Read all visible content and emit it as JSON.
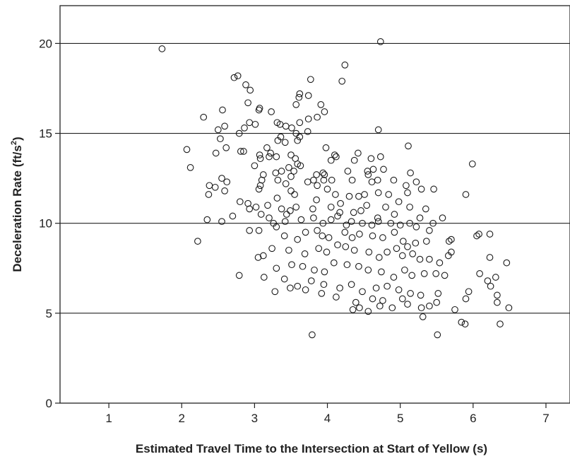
{
  "chart_data": {
    "type": "scatter",
    "title": "",
    "xlabel": "Estimated Travel Time to the Intersection at Start of Yellow (s)",
    "ylabel_main": "Deceleration Rate (ft/s",
    "ylabel_sup": "2",
    "ylabel_tail": ")",
    "xlim": [
      0.33,
      7.33
    ],
    "ylim": [
      0,
      22.1
    ],
    "xticks": [
      1,
      2,
      3,
      4,
      5,
      6,
      7
    ],
    "yticks": [
      0,
      5,
      10,
      15,
      20
    ],
    "gridlines_y": [
      5,
      10,
      15,
      20
    ],
    "grid": "horizontal",
    "legend": "none",
    "marker": "open-circle",
    "marker_color": "#1a1a1a",
    "series": [
      {
        "points": [
          [
            1.73,
            19.7
          ],
          [
            4.73,
            20.1
          ],
          [
            4.24,
            18.8
          ],
          [
            2.72,
            18.1
          ],
          [
            2.77,
            18.2
          ],
          [
            3.77,
            18.0
          ],
          [
            4.2,
            17.9
          ],
          [
            2.88,
            17.7
          ],
          [
            2.94,
            17.4
          ],
          [
            3.61,
            17.0
          ],
          [
            3.62,
            17.2
          ],
          [
            3.74,
            17.1
          ],
          [
            2.91,
            16.7
          ],
          [
            3.91,
            16.6
          ],
          [
            3.57,
            16.6
          ],
          [
            3.07,
            16.4
          ],
          [
            3.96,
            16.2
          ],
          [
            3.06,
            16.3
          ],
          [
            3.23,
            16.2
          ],
          [
            2.56,
            16.3
          ],
          [
            2.3,
            15.9
          ],
          [
            3.31,
            15.6
          ],
          [
            3.35,
            15.5
          ],
          [
            2.93,
            15.6
          ],
          [
            3.62,
            15.6
          ],
          [
            3.74,
            15.8
          ],
          [
            3.86,
            15.9
          ],
          [
            2.5,
            15.2
          ],
          [
            2.59,
            15.4
          ],
          [
            2.86,
            15.3
          ],
          [
            3.43,
            15.4
          ],
          [
            3.01,
            15.5
          ],
          [
            3.51,
            15.3
          ],
          [
            4.7,
            15.2
          ],
          [
            2.79,
            15.0
          ],
          [
            3.57,
            15.0
          ],
          [
            3.73,
            15.1
          ],
          [
            3.36,
            14.8
          ],
          [
            2.53,
            14.7
          ],
          [
            2.61,
            14.2
          ],
          [
            2.81,
            14.0
          ],
          [
            2.07,
            14.1
          ],
          [
            2.47,
            13.9
          ],
          [
            2.85,
            14.0
          ],
          [
            3.32,
            14.6
          ],
          [
            3.42,
            14.5
          ],
          [
            3.59,
            14.6
          ],
          [
            3.62,
            14.8
          ],
          [
            3.98,
            14.2
          ],
          [
            5.11,
            14.3
          ],
          [
            3.17,
            14.2
          ],
          [
            3.22,
            13.9
          ],
          [
            3.07,
            13.8
          ],
          [
            3.08,
            13.6
          ],
          [
            3.2,
            13.7
          ],
          [
            3.3,
            13.7
          ],
          [
            3.5,
            13.8
          ],
          [
            3.56,
            13.6
          ],
          [
            4.1,
            13.8
          ],
          [
            4.12,
            13.7
          ],
          [
            4.42,
            13.9
          ],
          [
            4.05,
            13.5
          ],
          [
            3.59,
            13.3
          ],
          [
            4.73,
            13.7
          ],
          [
            4.37,
            13.5
          ],
          [
            4.6,
            13.6
          ],
          [
            3.0,
            13.2
          ],
          [
            2.12,
            13.1
          ],
          [
            3.47,
            13.1
          ],
          [
            3.63,
            13.2
          ],
          [
            3.37,
            12.9
          ],
          [
            3.12,
            12.7
          ],
          [
            3.29,
            12.8
          ],
          [
            3.5,
            12.6
          ],
          [
            3.54,
            12.9
          ],
          [
            4.28,
            12.9
          ],
          [
            3.85,
            12.7
          ],
          [
            3.96,
            12.7
          ],
          [
            3.94,
            12.8
          ],
          [
            4.55,
            12.9
          ],
          [
            4.56,
            12.7
          ],
          [
            4.63,
            13.0
          ],
          [
            4.77,
            13.0
          ],
          [
            5.14,
            12.8
          ],
          [
            5.99,
            13.3
          ],
          [
            3.1,
            12.4
          ],
          [
            3.32,
            12.4
          ],
          [
            3.43,
            12.2
          ],
          [
            3.73,
            12.3
          ],
          [
            3.81,
            12.4
          ],
          [
            3.86,
            12.1
          ],
          [
            3.95,
            12.4
          ],
          [
            4.06,
            12.4
          ],
          [
            4.34,
            12.4
          ],
          [
            4.61,
            12.3
          ],
          [
            4.69,
            12.4
          ],
          [
            4.91,
            12.4
          ],
          [
            5.22,
            12.3
          ],
          [
            5.29,
            11.9
          ],
          [
            5.08,
            12.1
          ],
          [
            5.46,
            11.9
          ],
          [
            5.1,
            11.7
          ],
          [
            2.55,
            12.5
          ],
          [
            2.38,
            12.1
          ],
          [
            2.62,
            12.3
          ],
          [
            2.46,
            12.0
          ],
          [
            2.59,
            11.8
          ],
          [
            2.37,
            11.6
          ],
          [
            3.06,
            11.9
          ],
          [
            3.08,
            12.1
          ],
          [
            3.5,
            11.8
          ],
          [
            3.55,
            11.6
          ],
          [
            4.0,
            11.9
          ],
          [
            4.11,
            11.6
          ],
          [
            4.3,
            11.5
          ],
          [
            4.43,
            11.5
          ],
          [
            4.51,
            11.6
          ],
          [
            4.7,
            11.7
          ],
          [
            4.84,
            11.6
          ],
          [
            5.9,
            11.6
          ],
          [
            2.8,
            11.2
          ],
          [
            2.91,
            11.1
          ],
          [
            2.93,
            10.8
          ],
          [
            3.02,
            10.9
          ],
          [
            3.18,
            11.0
          ],
          [
            3.37,
            10.8
          ],
          [
            3.49,
            10.7
          ],
          [
            3.57,
            10.9
          ],
          [
            3.8,
            10.8
          ],
          [
            4.05,
            10.9
          ],
          [
            4.17,
            10.6
          ],
          [
            4.36,
            10.6
          ],
          [
            4.46,
            10.7
          ],
          [
            4.8,
            10.9
          ],
          [
            4.92,
            10.5
          ],
          [
            5.13,
            10.9
          ],
          [
            5.35,
            10.8
          ],
          [
            5.58,
            10.3
          ],
          [
            2.35,
            10.2
          ],
          [
            2.55,
            10.1
          ],
          [
            2.7,
            10.4
          ],
          [
            3.2,
            10.3
          ],
          [
            3.26,
            10.0
          ],
          [
            3.42,
            10.1
          ],
          [
            3.64,
            10.2
          ],
          [
            3.81,
            10.3
          ],
          [
            3.94,
            10.0
          ],
          [
            4.05,
            10.2
          ],
          [
            4.26,
            9.9
          ],
          [
            4.33,
            10.1
          ],
          [
            4.48,
            10.0
          ],
          [
            4.61,
            9.9
          ],
          [
            4.7,
            10.1
          ],
          [
            4.87,
            10.0
          ],
          [
            5.0,
            9.9
          ],
          [
            5.13,
            10.0
          ],
          [
            5.22,
            9.8
          ],
          [
            5.4,
            9.6
          ],
          [
            5.45,
            10.0
          ],
          [
            6.05,
            9.3
          ],
          [
            6.23,
            9.4
          ],
          [
            2.93,
            9.6
          ],
          [
            3.06,
            9.6
          ],
          [
            3.3,
            9.8
          ],
          [
            3.41,
            9.3
          ],
          [
            3.59,
            9.1
          ],
          [
            3.7,
            9.5
          ],
          [
            3.86,
            9.6
          ],
          [
            3.93,
            9.3
          ],
          [
            4.02,
            9.2
          ],
          [
            4.24,
            9.5
          ],
          [
            4.34,
            9.2
          ],
          [
            4.44,
            9.4
          ],
          [
            4.62,
            9.3
          ],
          [
            4.76,
            9.2
          ],
          [
            4.92,
            9.5
          ],
          [
            5.04,
            9.0
          ],
          [
            5.1,
            8.7
          ],
          [
            5.21,
            8.9
          ],
          [
            5.36,
            9.0
          ],
          [
            5.67,
            9.0
          ],
          [
            5.7,
            9.1
          ],
          [
            6.08,
            9.4
          ],
          [
            2.22,
            9.0
          ],
          [
            3.12,
            8.2
          ],
          [
            3.24,
            8.6
          ],
          [
            3.47,
            8.5
          ],
          [
            3.69,
            8.3
          ],
          [
            3.88,
            8.6
          ],
          [
            3.99,
            8.4
          ],
          [
            4.14,
            8.8
          ],
          [
            4.25,
            8.7
          ],
          [
            4.37,
            8.5
          ],
          [
            4.57,
            8.4
          ],
          [
            4.71,
            8.1
          ],
          [
            4.82,
            8.4
          ],
          [
            4.95,
            8.6
          ],
          [
            5.03,
            8.2
          ],
          [
            5.17,
            8.3
          ],
          [
            5.27,
            8.0
          ],
          [
            5.4,
            8.0
          ],
          [
            5.54,
            7.8
          ],
          [
            5.66,
            8.2
          ],
          [
            5.7,
            8.4
          ],
          [
            6.23,
            8.1
          ],
          [
            3.05,
            8.1
          ],
          [
            3.3,
            7.5
          ],
          [
            3.51,
            7.7
          ],
          [
            3.66,
            7.6
          ],
          [
            3.82,
            7.4
          ],
          [
            3.96,
            7.3
          ],
          [
            4.09,
            7.8
          ],
          [
            4.27,
            7.7
          ],
          [
            4.43,
            7.6
          ],
          [
            4.56,
            7.4
          ],
          [
            4.74,
            7.3
          ],
          [
            4.91,
            7.0
          ],
          [
            5.06,
            7.4
          ],
          [
            5.16,
            7.1
          ],
          [
            5.33,
            7.2
          ],
          [
            5.49,
            7.2
          ],
          [
            5.61,
            7.1
          ],
          [
            6.09,
            7.2
          ],
          [
            6.2,
            6.8
          ],
          [
            6.31,
            7.0
          ],
          [
            6.46,
            7.8
          ],
          [
            2.79,
            7.1
          ],
          [
            3.13,
            7.0
          ],
          [
            3.41,
            6.9
          ],
          [
            3.59,
            6.5
          ],
          [
            3.78,
            6.8
          ],
          [
            3.95,
            6.6
          ],
          [
            4.17,
            6.4
          ],
          [
            4.33,
            6.6
          ],
          [
            4.48,
            6.2
          ],
          [
            4.67,
            6.4
          ],
          [
            4.82,
            6.5
          ],
          [
            4.98,
            6.3
          ],
          [
            5.14,
            6.1
          ],
          [
            5.28,
            6.0
          ],
          [
            5.52,
            6.1
          ],
          [
            5.94,
            6.2
          ],
          [
            6.24,
            6.5
          ],
          [
            6.33,
            6.0
          ],
          [
            3.28,
            6.2
          ],
          [
            3.49,
            6.4
          ],
          [
            3.7,
            6.3
          ],
          [
            3.92,
            6.1
          ],
          [
            4.12,
            5.9
          ],
          [
            4.39,
            5.6
          ],
          [
            4.62,
            5.8
          ],
          [
            4.76,
            5.7
          ],
          [
            5.03,
            5.8
          ],
          [
            5.4,
            5.4
          ],
          [
            5.5,
            5.6
          ],
          [
            5.75,
            5.2
          ],
          [
            5.9,
            5.8
          ],
          [
            6.33,
            5.6
          ],
          [
            6.49,
            5.3
          ],
          [
            4.35,
            5.2
          ],
          [
            4.44,
            5.3
          ],
          [
            4.56,
            5.1
          ],
          [
            4.72,
            5.4
          ],
          [
            4.89,
            5.3
          ],
          [
            5.1,
            5.5
          ],
          [
            5.29,
            5.3
          ],
          [
            5.84,
            4.5
          ],
          [
            5.89,
            4.4
          ],
          [
            6.37,
            4.4
          ],
          [
            3.79,
            3.8
          ],
          [
            5.51,
            3.8
          ],
          [
            5.31,
            4.8
          ],
          [
            3.09,
            10.5
          ],
          [
            3.31,
            11.4
          ],
          [
            3.85,
            11.3
          ],
          [
            4.18,
            11.1
          ],
          [
            4.54,
            11.0
          ],
          [
            4.98,
            11.2
          ],
          [
            3.44,
            10.5
          ],
          [
            4.14,
            10.4
          ],
          [
            4.69,
            10.3
          ],
          [
            5.27,
            10.3
          ]
        ]
      }
    ]
  }
}
